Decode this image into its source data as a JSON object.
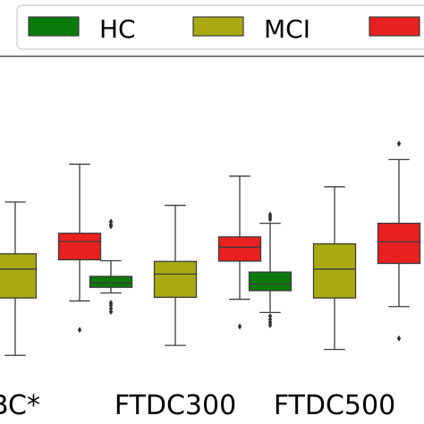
{
  "chart_data": {
    "type": "box",
    "categories": [
      "BC*",
      "FTDC300",
      "FTDC500"
    ],
    "legend": {
      "placement": "top",
      "entries": [
        {
          "name": "HC",
          "color": "#0a7a0a"
        },
        {
          "name": "MCI",
          "color": "#aaaa10"
        },
        {
          "name": "",
          "color": "#e82020"
        }
      ]
    },
    "yrange": [
      0,
      100
    ],
    "series": [
      {
        "name": "HC",
        "color": "#0a7a0a",
        "boxes": [
          null,
          {
            "whisker_low": 28.7,
            "q1": 30.4,
            "median": 31.7,
            "q3": 33.7,
            "whisker_high": 38.4,
            "fliers": [
              48.8,
              49.3,
              50.2,
              23.0,
              24.0,
              25.0,
              25.7
            ]
          },
          {
            "whisker_low": 22.8,
            "q1": 29.4,
            "median": 31.4,
            "q3": 35.0,
            "whisker_high": 49.7,
            "fliers": [
              19.0,
              19.8,
              20.7,
              21.7,
              50.9,
              51.6,
              52.3
            ]
          }
        ]
      },
      {
        "name": "MCI",
        "color": "#aaaa10",
        "boxes": [
          {
            "whisker_low": 9.9,
            "q1": 27.2,
            "median": 35.9,
            "q3": 40.5,
            "whisker_high": 56.1,
            "fliers": []
          },
          {
            "whisker_low": 12.9,
            "q1": 27.4,
            "median": 34.4,
            "q3": 38.2,
            "whisker_high": 55.1,
            "fliers": []
          },
          {
            "whisker_low": 11.7,
            "q1": 27.2,
            "median": 35.9,
            "q3": 43.5,
            "whisker_high": 60.7,
            "fliers": []
          }
        ]
      },
      {
        "name": "",
        "color": "#e82020",
        "boxes": [
          {
            "whisker_low": 26.3,
            "q1": 38.7,
            "median": 44.2,
            "q3": 46.7,
            "whisker_high": 67.5,
            "fliers": [
              17.6
            ]
          },
          {
            "whisker_low": 26.8,
            "q1": 38.3,
            "median": 42.5,
            "q3": 45.6,
            "whisker_high": 63.9,
            "fliers": [
              18.6
            ]
          },
          {
            "whisker_low": 24.6,
            "q1": 37.6,
            "median": 44.1,
            "q3": 49.7,
            "whisker_high": 68.9,
            "fliers": [
              15.0,
              73.7
            ]
          }
        ]
      }
    ],
    "grid": false
  }
}
